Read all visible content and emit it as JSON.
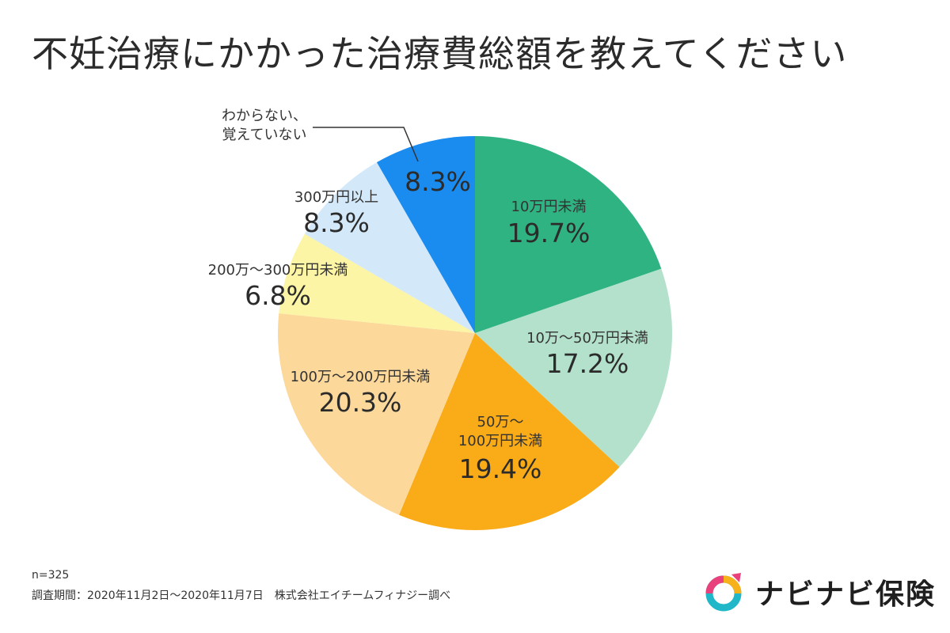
{
  "title": "不妊治療にかかった治療費総額を教えてください",
  "chart_data": {
    "type": "pie",
    "start_angle_deg": 0,
    "direction": "clockwise",
    "slices": [
      {
        "label": "10万円未満",
        "value": 19.7,
        "display": "19.7%",
        "color": "#2fb382"
      },
      {
        "label": "10万～50万円未満",
        "value": 17.2,
        "display": "17.2%",
        "color": "#b4e1cc"
      },
      {
        "label_lines": [
          "50万～",
          "100万円未満"
        ],
        "value": 19.4,
        "display": "19.4%",
        "color": "#f9ab18"
      },
      {
        "label": "100万～200万円未満",
        "value": 20.3,
        "display": "20.3%",
        "color": "#fcd89a"
      },
      {
        "label": "200万～300万円未満",
        "value": 6.8,
        "display": "6.8%",
        "color": "#fdf5a6"
      },
      {
        "label": "300万円以上",
        "value": 8.3,
        "display": "8.3%",
        "color": "#d3e9f9"
      },
      {
        "label_lines": [
          "わからない、",
          "覚えていない"
        ],
        "value": 8.3,
        "display": "8.3%",
        "color": "#1a8cf0"
      }
    ]
  },
  "footer": {
    "n": "n=325",
    "period": "調査期間：2020年11月2日～2020年11月7日　株式会社エイチームフィナジー調べ"
  },
  "logo": {
    "text": "ナビナビ保険"
  }
}
